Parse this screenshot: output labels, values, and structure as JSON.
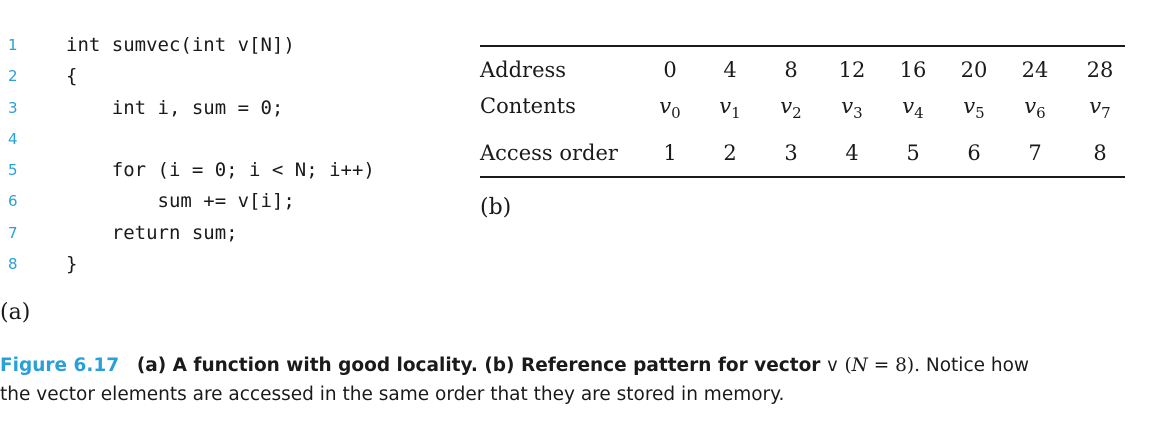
{
  "code": {
    "lines": [
      {
        "num": "1",
        "text": "int sumvec(int v[N])"
      },
      {
        "num": "2",
        "text": "{"
      },
      {
        "num": "3",
        "text": "    int i, sum = 0;"
      },
      {
        "num": "4",
        "text": ""
      },
      {
        "num": "5",
        "text": "    for (i = 0; i < N; i++)"
      },
      {
        "num": "6",
        "text": "        sum += v[i];"
      },
      {
        "num": "7",
        "text": "    return sum;"
      },
      {
        "num": "8",
        "text": "}"
      }
    ],
    "label": "(a)"
  },
  "table": {
    "rows": [
      {
        "label": "Address",
        "cells": [
          "0",
          "4",
          "8",
          "12",
          "16",
          "20",
          "24",
          "28"
        ]
      },
      {
        "label": "Contents",
        "cells": [
          {
            "var": "v",
            "sub": "0"
          },
          {
            "var": "v",
            "sub": "1"
          },
          {
            "var": "v",
            "sub": "2"
          },
          {
            "var": "v",
            "sub": "3"
          },
          {
            "var": "v",
            "sub": "4"
          },
          {
            "var": "v",
            "sub": "5"
          },
          {
            "var": "v",
            "sub": "6"
          },
          {
            "var": "v",
            "sub": "7"
          }
        ]
      },
      {
        "label": "Access order",
        "cells": [
          "1",
          "2",
          "3",
          "4",
          "5",
          "6",
          "7",
          "8"
        ]
      }
    ],
    "label": "(b)"
  },
  "caption": {
    "figure": "Figure 6.17",
    "title_part1": "(a) A function with good locality. (b) Reference pattern for vector",
    "code_var": "v",
    "math_open": "(",
    "math_var": "N",
    "math_rest": " = 8).",
    "body_line1": "Notice how",
    "body_line2": "the vector elements are accessed in the same order that they are stored in memory."
  }
}
